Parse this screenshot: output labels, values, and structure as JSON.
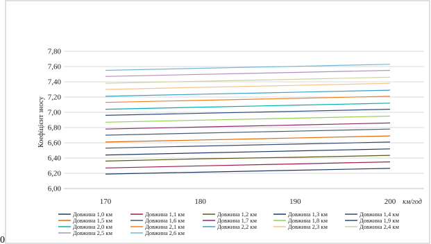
{
  "corner_label": "0",
  "chart_data": {
    "type": "line",
    "title": "",
    "xlabel": "",
    "x_unit": "км/год",
    "ylabel": "Коефіцієнт зносу",
    "x": [
      170,
      180,
      190,
      200
    ],
    "ylim": [
      6.0,
      7.8
    ],
    "y_ticks": [
      "6,00",
      "6,20",
      "6,40",
      "6,60",
      "6,80",
      "7,00",
      "7,20",
      "7,40",
      "7,60",
      "7,80"
    ],
    "x_ticks": [
      "170",
      "180",
      "190",
      "200"
    ],
    "grid": "horizontal",
    "legend_position": "bottom",
    "series": [
      {
        "name": "Довжина 1,0 км",
        "color": "#1f3864",
        "values": [
          6.19,
          6.215,
          6.24,
          6.265
        ]
      },
      {
        "name": "Довжина 1,1 км",
        "color": "#9b1b4b",
        "values": [
          6.27,
          6.297,
          6.323,
          6.35
        ]
      },
      {
        "name": "Довжина 1,2 км",
        "color": "#5b5a12",
        "values": [
          6.36,
          6.39,
          6.41,
          6.435
        ]
      },
      {
        "name": "Довжина 1,3 км",
        "color": "#1f3864",
        "values": [
          6.44,
          6.467,
          6.493,
          6.52
        ]
      },
      {
        "name": "Довжина 1,4 км",
        "color": "#3a4a6b",
        "values": [
          6.53,
          6.557,
          6.583,
          6.61
        ]
      },
      {
        "name": "Довжина 1,5 км",
        "color": "#e36c09",
        "values": [
          6.61,
          6.637,
          6.663,
          6.69
        ]
      },
      {
        "name": "Довжина 1,6 км",
        "color": "#4a5a70",
        "values": [
          6.7,
          6.727,
          6.753,
          6.78
        ]
      },
      {
        "name": "Довжина 1,7 км",
        "color": "#8e2a6e",
        "values": [
          6.78,
          6.807,
          6.833,
          6.86
        ]
      },
      {
        "name": "Довжина 1,8 км",
        "color": "#92d050",
        "values": [
          6.87,
          6.897,
          6.923,
          6.95
        ]
      },
      {
        "name": "Довжина 1,9 км",
        "color": "#2e4a7a",
        "values": [
          6.96,
          6.987,
          7.013,
          7.04
        ]
      },
      {
        "name": "Довжина 2,0 км",
        "color": "#00b0b0",
        "values": [
          7.04,
          7.067,
          7.093,
          7.12
        ]
      },
      {
        "name": "Довжина 2,1 км",
        "color": "#f08020",
        "values": [
          7.13,
          7.157,
          7.183,
          7.21
        ]
      },
      {
        "name": "Довжина 2,2 км",
        "color": "#3aa0c8",
        "values": [
          7.21,
          7.237,
          7.263,
          7.29
        ]
      },
      {
        "name": "Довжина 2,3 км",
        "color": "#f9c08a",
        "values": [
          7.3,
          7.327,
          7.353,
          7.38
        ]
      },
      {
        "name": "Довжина 2,4 км",
        "color": "#d0d0a0",
        "values": [
          7.38,
          7.407,
          7.433,
          7.46
        ]
      },
      {
        "name": "Довжина 2,5 км",
        "color": "#b090c0",
        "values": [
          7.47,
          7.497,
          7.523,
          7.55
        ]
      },
      {
        "name": "Довжина 2,6 км",
        "color": "#70b8d8",
        "values": [
          7.55,
          7.577,
          7.603,
          7.63
        ]
      }
    ]
  }
}
